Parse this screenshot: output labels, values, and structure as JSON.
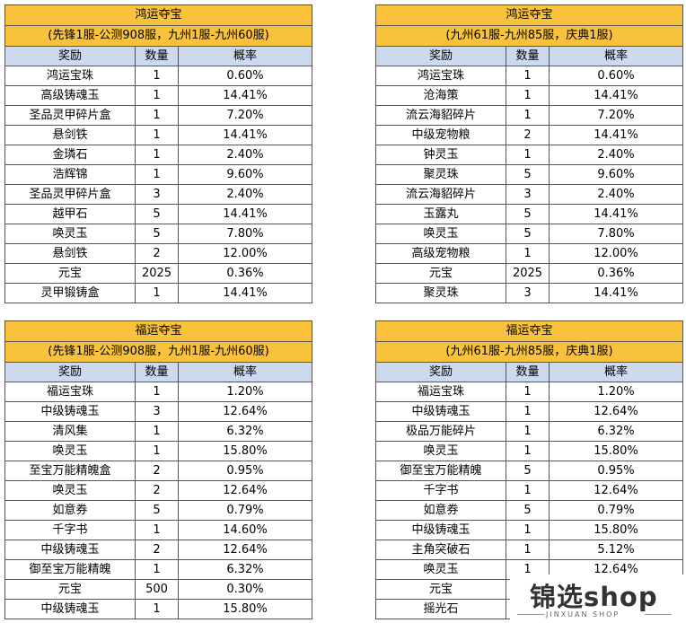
{
  "headers": {
    "reward": "奖励",
    "qty": "数量",
    "rate": "概率"
  },
  "tables": [
    {
      "title": "鸿运夺宝",
      "subtitle": "(先锋1服-公测908服，九州1服-九州60服)",
      "rows": [
        [
          "鸿运宝珠",
          "1",
          "0.60%"
        ],
        [
          "高级铸魂玉",
          "1",
          "14.41%"
        ],
        [
          "圣品灵甲碎片盒",
          "1",
          "7.20%"
        ],
        [
          "悬剑铁",
          "1",
          "14.41%"
        ],
        [
          "金璘石",
          "1",
          "2.40%"
        ],
        [
          "浩辉锦",
          "1",
          "9.60%"
        ],
        [
          "圣品灵甲碎片盒",
          "3",
          "2.40%"
        ],
        [
          "越甲石",
          "5",
          "14.41%"
        ],
        [
          "唤灵玉",
          "5",
          "7.80%"
        ],
        [
          "悬剑铁",
          "2",
          "12.00%"
        ],
        [
          "元宝",
          "2025",
          "0.36%"
        ],
        [
          "灵甲锻铸盒",
          "1",
          "14.41%"
        ]
      ]
    },
    {
      "title": "鸿运夺宝",
      "subtitle": "(九州61服-九州85服，庆典1服)",
      "rows": [
        [
          "鸿运宝珠",
          "1",
          "0.60%"
        ],
        [
          "沧海策",
          "1",
          "14.41%"
        ],
        [
          "流云海貂碎片",
          "1",
          "7.20%"
        ],
        [
          "中级宠物粮",
          "2",
          "14.41%"
        ],
        [
          "钟灵玉",
          "1",
          "2.40%"
        ],
        [
          "聚灵珠",
          "5",
          "9.60%"
        ],
        [
          "流云海貂碎片",
          "3",
          "2.40%"
        ],
        [
          "玉露丸",
          "5",
          "14.41%"
        ],
        [
          "唤灵玉",
          "5",
          "7.80%"
        ],
        [
          "高级宠物粮",
          "1",
          "12.00%"
        ],
        [
          "元宝",
          "2025",
          "0.36%"
        ],
        [
          "聚灵珠",
          "3",
          "14.41%"
        ]
      ]
    },
    {
      "title": "福运夺宝",
      "subtitle": "(先锋1服-公测908服，九州1服-九州60服)",
      "rows": [
        [
          "福运宝珠",
          "1",
          "1.20%"
        ],
        [
          "中级铸魂玉",
          "3",
          "12.64%"
        ],
        [
          "清风集",
          "1",
          "6.32%"
        ],
        [
          "唤灵玉",
          "1",
          "15.80%"
        ],
        [
          "至宝万能精魄盒",
          "2",
          "0.95%"
        ],
        [
          "唤灵玉",
          "2",
          "12.64%"
        ],
        [
          "如意券",
          "5",
          "0.79%"
        ],
        [
          "千字书",
          "1",
          "14.60%"
        ],
        [
          "中级铸魂玉",
          "2",
          "12.64%"
        ],
        [
          "御至宝万能精魄",
          "1",
          "6.32%"
        ],
        [
          "元宝",
          "500",
          "0.30%"
        ],
        [
          "中级铸魂玉",
          "1",
          "15.80%"
        ]
      ]
    },
    {
      "title": "福运夺宝",
      "subtitle": "(九州61服-九州85服，庆典1服)",
      "rows": [
        [
          "福运宝珠",
          "1",
          "1.20%"
        ],
        [
          "中级铸魂玉",
          "1",
          "12.64%"
        ],
        [
          "极品万能碎片",
          "1",
          "6.32%"
        ],
        [
          "唤灵玉",
          "1",
          "15.80%"
        ],
        [
          "御至宝万能精魄",
          "5",
          "0.95%"
        ],
        [
          "千字书",
          "1",
          "12.64%"
        ],
        [
          "如意券",
          "5",
          "0.79%"
        ],
        [
          "中级铸魂玉",
          "1",
          "15.80%"
        ],
        [
          "主角突破石",
          "1",
          "5.12%"
        ],
        [
          "唤灵玉",
          "1",
          "12.64%"
        ],
        [
          "元宝",
          "",
          ""
        ],
        [
          "摇光石",
          "",
          ""
        ]
      ]
    }
  ],
  "watermark": {
    "main": "锦选shop",
    "sub": "JINXUAN SHOP"
  }
}
